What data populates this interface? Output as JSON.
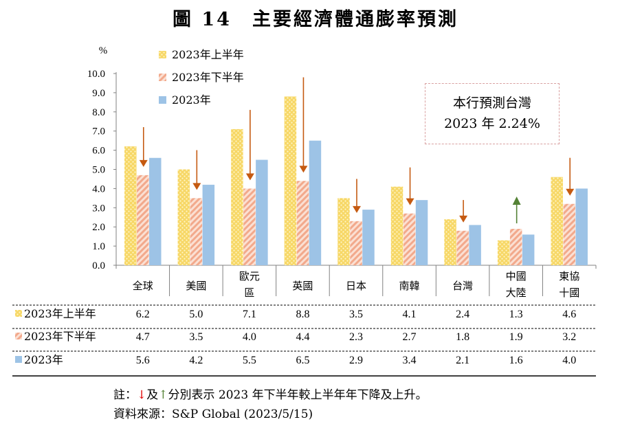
{
  "title": "圖 14　主要經濟體通膨率預測",
  "chart_data": {
    "type": "bar",
    "ylabel": "%",
    "ylim": [
      0,
      10
    ],
    "yticks": [
      "0.0",
      "1.0",
      "2.0",
      "3.0",
      "4.0",
      "5.0",
      "6.0",
      "7.0",
      "8.0",
      "9.0",
      "10.0"
    ],
    "categories": [
      [
        "全球"
      ],
      [
        "美國"
      ],
      [
        "歐元",
        "區"
      ],
      [
        "英國"
      ],
      [
        "日本"
      ],
      [
        "南韓"
      ],
      [
        "台灣"
      ],
      [
        "中國",
        "大陸"
      ],
      [
        "東協",
        "十國"
      ]
    ],
    "series": [
      {
        "name": "2023年上半年",
        "values": [
          6.2,
          5.0,
          7.1,
          8.8,
          3.5,
          4.1,
          2.4,
          1.3,
          4.6
        ],
        "labels": [
          "6.2",
          "5.0",
          "7.1",
          "8.8",
          "3.5",
          "4.1",
          "2.4",
          "1.3",
          "4.6"
        ],
        "color": "#f7d766",
        "pattern": "dots"
      },
      {
        "name": "2023年下半年",
        "values": [
          4.7,
          3.5,
          4.0,
          4.4,
          2.3,
          2.7,
          1.8,
          1.9,
          3.2
        ],
        "labels": [
          "4.7",
          "3.5",
          "4.0",
          "4.4",
          "2.3",
          "2.7",
          "1.8",
          "1.9",
          "3.2"
        ],
        "color": "#f2a98c",
        "pattern": "hatch"
      },
      {
        "name": "2023年",
        "values": [
          5.6,
          4.2,
          5.5,
          6.5,
          2.9,
          3.4,
          2.1,
          1.6,
          4.0
        ],
        "labels": [
          "5.6",
          "4.2",
          "5.5",
          "6.5",
          "2.9",
          "3.4",
          "2.1",
          "1.6",
          "4.0"
        ],
        "color": "#9dc3e6",
        "pattern": "solid"
      }
    ],
    "trend_arrows": [
      "down",
      "down",
      "down",
      "down",
      "down",
      "down",
      "down",
      "up",
      "down"
    ],
    "arrow_colors": {
      "down": "#c55a11",
      "up": "#548235"
    },
    "legend_position": "top-left",
    "grid": false
  },
  "callout": {
    "line1": "本行預測台灣",
    "line2": "2023 年 2.24%"
  },
  "note": {
    "prefix": "註：",
    "down_symbol": "↓",
    "and": "及",
    "up_symbol": "↑",
    "text": "分別表示 2023 年下半年較上半年年下降及上升。",
    "source": "資料來源：S&P Global (2023/5/15)"
  }
}
